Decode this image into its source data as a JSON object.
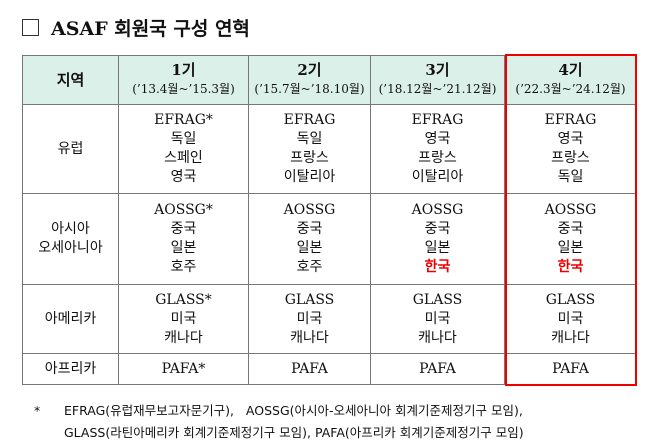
{
  "header": {
    "title": "ASAF 회원국 구성 연혁"
  },
  "table": {
    "columns": [
      [
        "지역"
      ],
      [
        "1기",
        "(’13.4월~’15.3월)"
      ],
      [
        "2기",
        "(’15.7월~’18.10월)"
      ],
      [
        "3기",
        "(’18.12월~’21.12월)"
      ],
      [
        "4기",
        "(’22.3월~’24.12월)"
      ]
    ],
    "rows": [
      [
        [
          "유럽"
        ],
        [
          "EFRAG*",
          "독일",
          "스페인",
          "영국"
        ],
        [
          "EFRAG",
          "독일",
          "프랑스",
          "이탈리아"
        ],
        [
          "EFRAG",
          "영국",
          "프랑스",
          "이탈리아"
        ],
        [
          "EFRAG",
          "영국",
          "프랑스",
          "독일"
        ]
      ],
      [
        [
          "아시아",
          "오세아니아"
        ],
        [
          "AOSSG*",
          "중국",
          "일본",
          "호주"
        ],
        [
          "AOSSG",
          "중국",
          "일본",
          "호주"
        ],
        [
          "AOSSG",
          "중국",
          "일본",
          "한국"
        ],
        [
          "AOSSG",
          "중국",
          "일본",
          "한국"
        ]
      ],
      [
        [
          "아메리카"
        ],
        [
          "GLASS*",
          "미국",
          "캐나다"
        ],
        [
          "GLASS",
          "미국",
          "캐나다"
        ],
        [
          "GLASS",
          "미국",
          "캐나다"
        ],
        [
          "GLASS",
          "미국",
          "캐나다"
        ]
      ],
      [
        [
          "아프리카"
        ],
        [
          "PAFA*"
        ],
        [
          "PAFA"
        ],
        [
          "PAFA"
        ],
        [
          "PAFA"
        ]
      ]
    ]
  },
  "footnote": {
    "marker": "*",
    "lines": [
      "EFRAG(유럽재무보고자문기구),   AOSSG(아시아-오세아니아 회계기준제정기구 모임),",
      "GLASS(라틴아메리카 회계기준제정기구 모임), PAFA(아프리카 회계기준제정기구 모임)"
    ]
  }
}
